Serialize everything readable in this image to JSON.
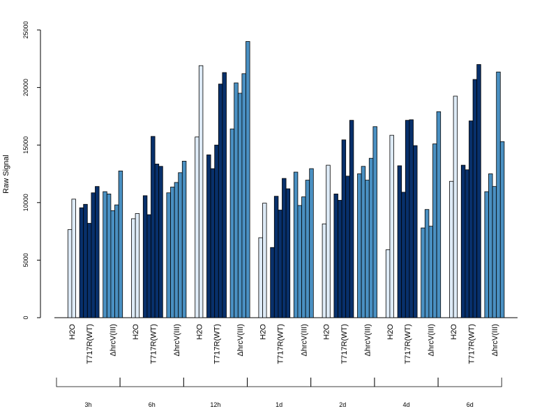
{
  "chart_data": {
    "type": "bar",
    "title": "",
    "ylabel": "Raw Signal",
    "xlabel": "",
    "ylim": [
      0,
      25000
    ],
    "yticks": [
      0,
      5000,
      10000,
      15000,
      20000,
      25000
    ],
    "grid": false,
    "legend": "none",
    "colors": {
      "H2O": "#deebf7",
      "T717": "#08306b",
      "hrcV": "#4a90c2",
      "stroke": "#000000"
    },
    "group_labels": [
      "H2O",
      "T717R(WT)",
      "ΔhrcV(III)"
    ],
    "time_points": [
      {
        "label": "3h",
        "H2O": [
          7650,
          10300
        ],
        "T717": [
          9550,
          9850,
          8200,
          10850,
          11400
        ],
        "hrcV": [
          10950,
          10750,
          9300,
          9800,
          12750
        ]
      },
      {
        "label": "6h",
        "H2O": [
          8600,
          9050
        ],
        "T717": [
          10600,
          8950,
          15750,
          13350,
          13150
        ],
        "hrcV": [
          10850,
          11350,
          11750,
          12600,
          13600
        ]
      },
      {
        "label": "12h",
        "H2O": [
          15700,
          21900
        ],
        "T717": [
          14150,
          12950,
          15000,
          20300,
          21300
        ],
        "hrcV": [
          16400,
          20400,
          19500,
          21200,
          24000
        ]
      },
      {
        "label": "1d",
        "H2O": [
          6950,
          9950
        ],
        "T717": [
          6100,
          10550,
          9350,
          12100,
          11200
        ],
        "hrcV": [
          12650,
          9750,
          10500,
          11950,
          12950
        ]
      },
      {
        "label": "2d",
        "H2O": [
          8150,
          13250
        ],
        "T717": [
          10750,
          10200,
          15450,
          12300,
          17150
        ],
        "hrcV": [
          12500,
          13150,
          11950,
          13850,
          16600
        ]
      },
      {
        "label": "4d",
        "H2O": [
          5900,
          15850
        ],
        "T717": [
          13200,
          10900,
          17150,
          17200,
          14950
        ],
        "hrcV": [
          7800,
          9400,
          7950,
          15100,
          17900
        ]
      },
      {
        "label": "6d",
        "H2O": [
          11850,
          19250
        ],
        "T717": [
          13250,
          12850,
          17100,
          20700,
          22000
        ],
        "hrcV": [
          10950,
          12500,
          11400,
          21350,
          15300
        ]
      }
    ]
  }
}
